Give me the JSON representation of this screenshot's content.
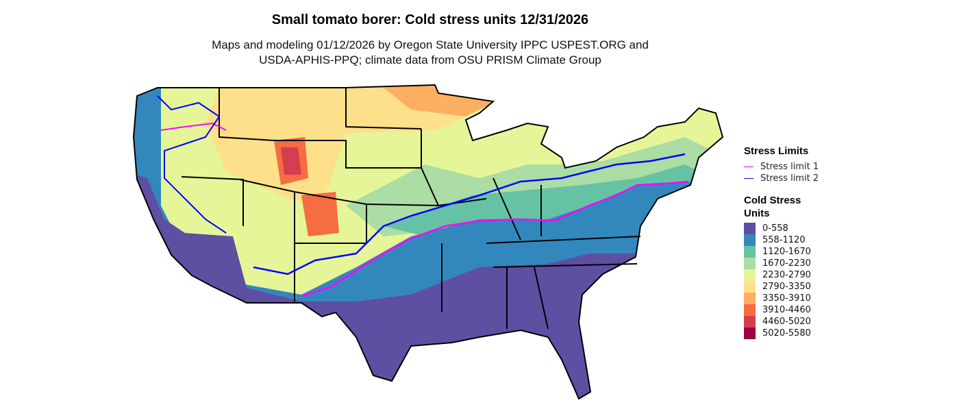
{
  "title": "Small tomato borer: Cold stress units 12/31/2026",
  "subtitle_line1": "Maps and modeling 01/12/2026 by Oregon State University IPPC USPEST.ORG and",
  "subtitle_line2": "USDA-APHIS-PPQ; climate data from OSU PRISM Climate Group",
  "legend_limits": {
    "title": "Stress Limits",
    "items": [
      {
        "label": "Stress limit 1",
        "color": "#FF00FF"
      },
      {
        "label": "Stress limit 2",
        "color": "#0000FF"
      }
    ]
  },
  "legend_units": {
    "title_line1": "Cold Stress",
    "title_line2": "Units",
    "items": [
      {
        "label": "0-558",
        "color": "#5E4FA2"
      },
      {
        "label": "558-1120",
        "color": "#3288BD"
      },
      {
        "label": "1120-1670",
        "color": "#66C2A5"
      },
      {
        "label": "1670-2230",
        "color": "#ABDDA4"
      },
      {
        "label": "2230-2790",
        "color": "#E6F598"
      },
      {
        "label": "2790-3350",
        "color": "#FEE08B"
      },
      {
        "label": "3350-3910",
        "color": "#FDAE61"
      },
      {
        "label": "3910-4460",
        "color": "#F46D43"
      },
      {
        "label": "4460-5020",
        "color": "#D53E4F"
      },
      {
        "label": "5020-5580",
        "color": "#9E0142"
      }
    ]
  }
}
